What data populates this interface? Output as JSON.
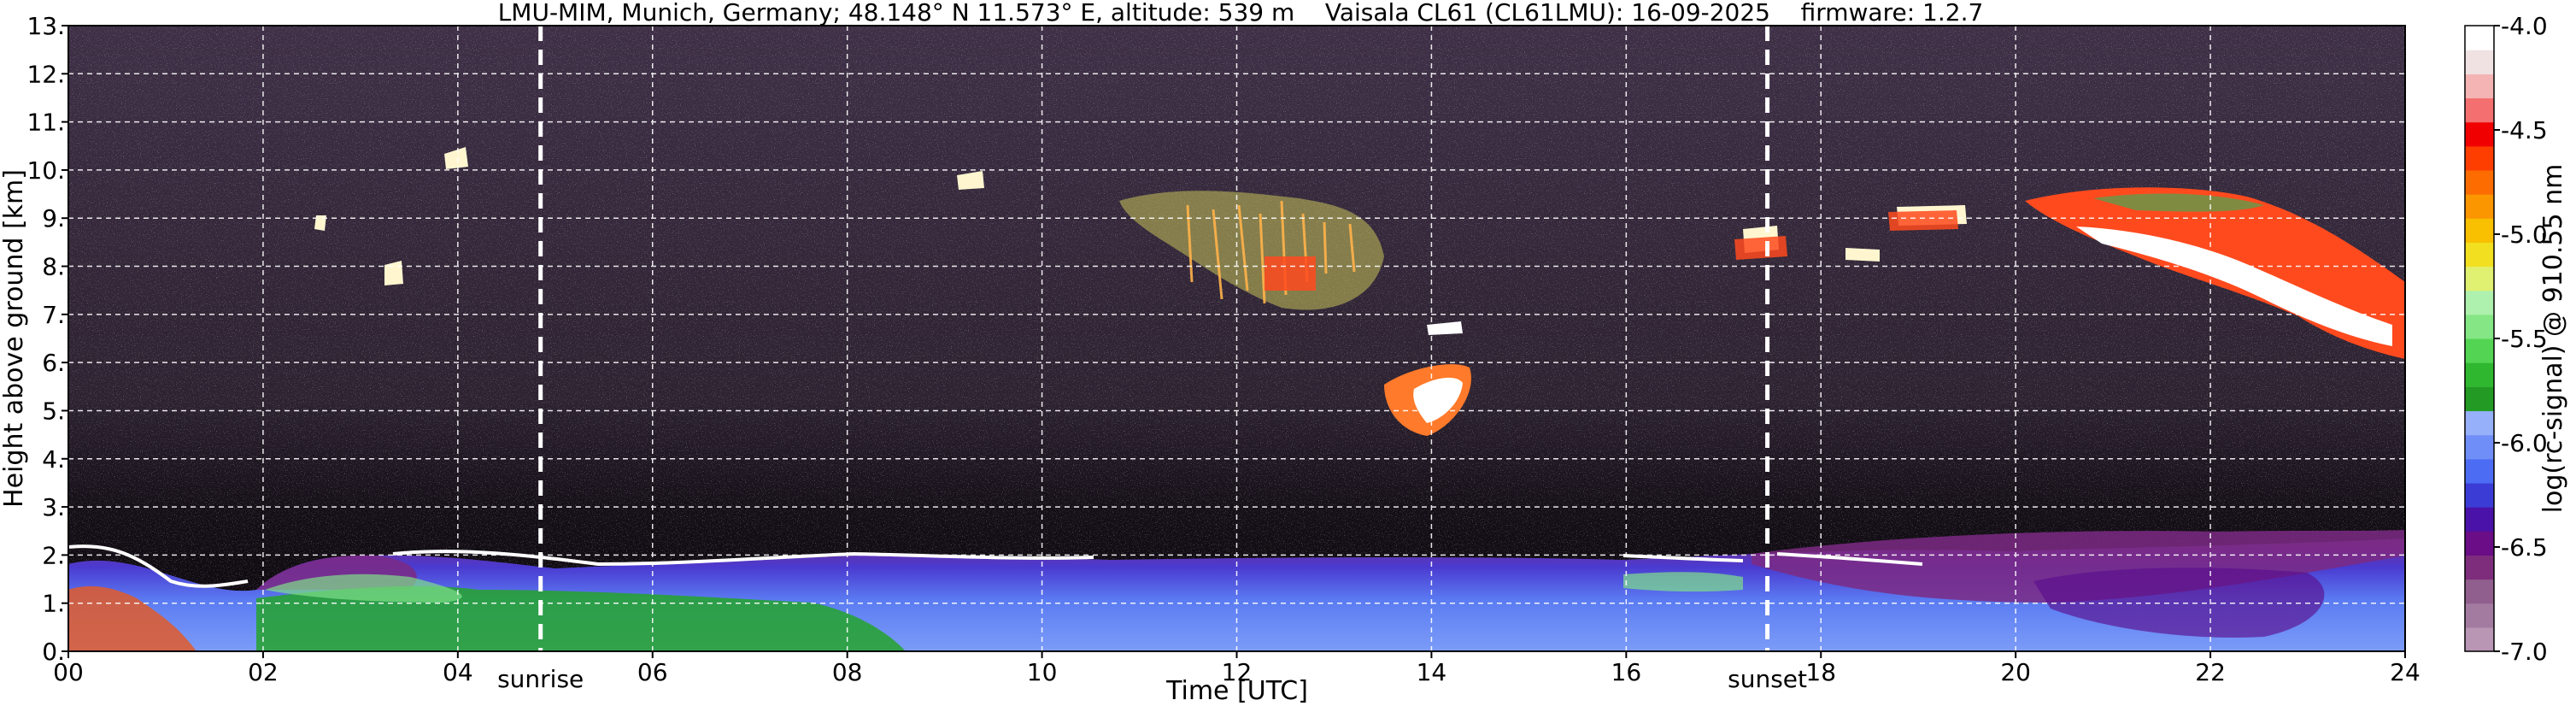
{
  "chart_data": {
    "type": "heatmap",
    "title": "LMU-MIM, Munich, Germany; 48.148° N 11.573° E, altitude: 539 m    Vaisala CL61 (CL61LMU): 16-09-2025    firmware: 1.2.7",
    "xlabel": "Time [UTC]",
    "ylabel": "Height above ground [km]",
    "xlim": [
      0,
      24
    ],
    "ylim": [
      0,
      13
    ],
    "x_ticks": [
      "00",
      "02",
      "04",
      "06",
      "08",
      "10",
      "12",
      "14",
      "16",
      "18",
      "20",
      "22",
      "24"
    ],
    "y_ticks": [
      "0.",
      "1.",
      "2.",
      "3.",
      "4.",
      "5.",
      "6.",
      "7.",
      "8.",
      "9.",
      "10.",
      "11.",
      "12.",
      "13."
    ],
    "grid": true,
    "annotations": [
      {
        "label": "sunrise",
        "x": 4.85
      },
      {
        "label": "sunset",
        "x": 17.45
      }
    ],
    "colorbar": {
      "label": "log(rc-signal) @ 910.55 nm",
      "range": [
        -7.0,
        -4.0
      ],
      "ticks": [
        "-7.0",
        "-6.5",
        "-6.0",
        "-5.5",
        "-5.0",
        "-4.5",
        "-4.0"
      ],
      "colors": [
        "#b896b4",
        "#a47ba0",
        "#915f8e",
        "#7e2d7c",
        "#6a0d86",
        "#4a12a8",
        "#3b3cd6",
        "#4c6cf4",
        "#6f8ef8",
        "#96b0fa",
        "#239a23",
        "#2fb82f",
        "#53d453",
        "#84e684",
        "#aef0ae",
        "#e0f070",
        "#f2e020",
        "#f8c000",
        "#fb9600",
        "#fd6c00",
        "#fe3e00",
        "#f00000",
        "#f46f6f",
        "#f4b4b4",
        "#f0e2e2",
        "#ffffff"
      ]
    },
    "features": [
      {
        "kind": "boundary layer top",
        "time_range": [
          0,
          24
        ],
        "height_km": [
          1.6,
          2.4
        ]
      },
      {
        "kind": "cirrus",
        "time_range": [
          11,
          13.5
        ],
        "height_km": [
          7,
          9.6
        ]
      },
      {
        "kind": "mid-level cloud",
        "time_range": [
          13.3,
          14.8
        ],
        "height_km": [
          5.2,
          6.8
        ]
      },
      {
        "kind": "cirrus",
        "time_range": [
          20,
          24
        ],
        "height_km": [
          5.8,
          9.5
        ]
      }
    ]
  }
}
